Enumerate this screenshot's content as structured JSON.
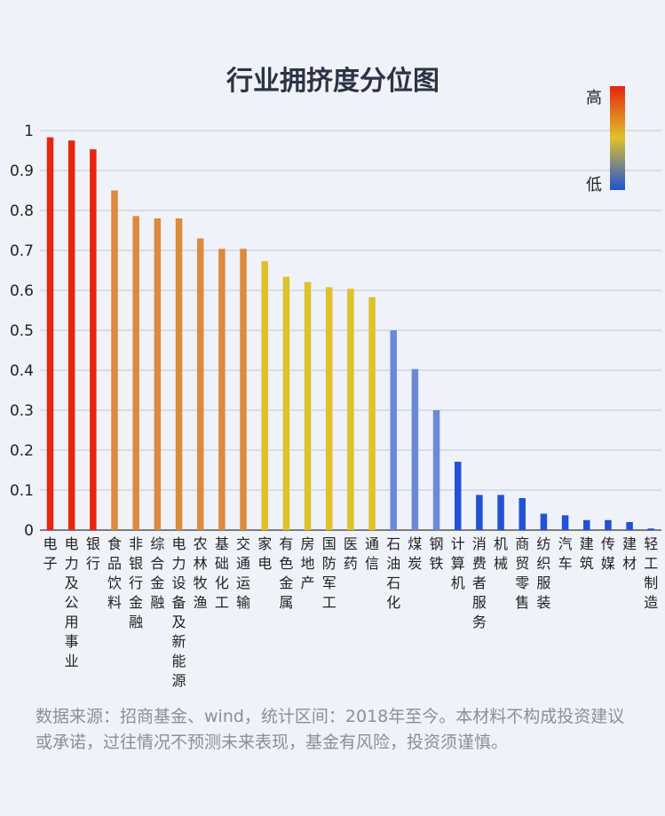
{
  "chart_data": {
    "type": "bar",
    "title": "行业拥挤度分位图",
    "categories": [
      "电子",
      "电力及公用事业",
      "银行",
      "食品饮料",
      "非银行金融",
      "综合金融",
      "电力设备及新能源",
      "农林牧渔",
      "基础化工",
      "交通运输",
      "家电",
      "有色金属",
      "房地产",
      "国防军工",
      "医药",
      "通信",
      "石油石化",
      "煤炭",
      "钢铁",
      "计算机",
      "消费者服务",
      "机械",
      "商贸零售",
      "纺织服装",
      "汽车",
      "建筑",
      "传媒",
      "建材",
      "轻工制造"
    ],
    "values": [
      0.983,
      0.975,
      0.953,
      0.85,
      0.786,
      0.78,
      0.78,
      0.73,
      0.704,
      0.704,
      0.673,
      0.634,
      0.621,
      0.608,
      0.604,
      0.583,
      0.5,
      0.403,
      0.3,
      0.171,
      0.088,
      0.088,
      0.08,
      0.041,
      0.037,
      0.025,
      0.025,
      0.02,
      0.004
    ],
    "yticks": [
      "0",
      "0.1",
      "0.2",
      "0.3",
      "0.4",
      "0.5",
      "0.6",
      "0.7",
      "0.8",
      "0.9",
      "1"
    ],
    "ylim": [
      0,
      1
    ],
    "grid": true,
    "legend": {
      "placement": "top-right",
      "high": "高",
      "low": "低"
    },
    "colors": {
      "high": "#e8250f",
      "midhigh": "#dd8a3c",
      "mid": "#ddc22a",
      "midlow": "#6a8ad6",
      "low": "#2151d6"
    }
  },
  "source_note": "数据来源：招商基金、wind，统计区间：2018年至今。本材料不构成投资建议或承诺，过往情况不预测未来表现，基金有风险，投资须谨慎。"
}
